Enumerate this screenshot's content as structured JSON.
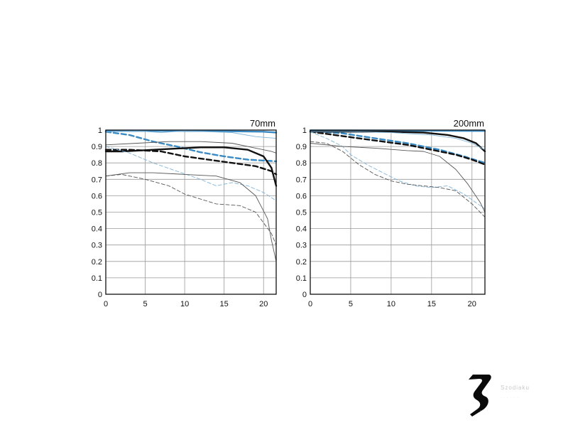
{
  "chart_data": [
    {
      "type": "line",
      "title": "70mm",
      "xlim": [
        0,
        21.6
      ],
      "ylim": [
        0,
        1
      ],
      "xticks": [
        "0",
        "5",
        "10",
        "15",
        "20"
      ],
      "yticks": [
        "0",
        "0.1",
        "0.2",
        "0.3",
        "0.4",
        "0.5",
        "0.6",
        "0.7",
        "0.8",
        "0.9",
        "1"
      ],
      "grid": true,
      "series": [
        {
          "color": "#3a8ac4",
          "dash": "solid",
          "weight": "thick",
          "points": [
            [
              0,
              0.995
            ],
            [
              5,
              0.995
            ],
            [
              10,
              0.995
            ],
            [
              15,
              0.993
            ],
            [
              20,
              0.99
            ],
            [
              21.6,
              0.985
            ]
          ]
        },
        {
          "color": "#3a8ac4",
          "dash": "dashed",
          "weight": "thick",
          "points": [
            [
              0,
              0.99
            ],
            [
              3,
              0.97
            ],
            [
              6,
              0.93
            ],
            [
              9,
              0.9
            ],
            [
              12,
              0.865
            ],
            [
              15,
              0.84
            ],
            [
              18,
              0.82
            ],
            [
              21.6,
              0.81
            ]
          ]
        },
        {
          "color": "#111111",
          "dash": "solid",
          "weight": "thick",
          "points": [
            [
              0,
              0.87
            ],
            [
              2,
              0.87
            ],
            [
              4,
              0.875
            ],
            [
              8,
              0.885
            ],
            [
              12,
              0.895
            ],
            [
              15,
              0.895
            ],
            [
              18,
              0.88
            ],
            [
              20,
              0.84
            ],
            [
              21,
              0.77
            ],
            [
              21.6,
              0.66
            ]
          ]
        },
        {
          "color": "#111111",
          "dash": "dashed",
          "weight": "thick",
          "points": [
            [
              0,
              0.88
            ],
            [
              3,
              0.88
            ],
            [
              7,
              0.87
            ],
            [
              10,
              0.84
            ],
            [
              13,
              0.82
            ],
            [
              16,
              0.8
            ],
            [
              19,
              0.78
            ],
            [
              21,
              0.75
            ],
            [
              21.6,
              0.73
            ]
          ]
        },
        {
          "color": "#7fb3d8",
          "dash": "solid",
          "weight": "thin",
          "points": [
            [
              0,
              0.99
            ],
            [
              4,
              0.995
            ],
            [
              7,
              0.985
            ],
            [
              10,
              0.995
            ],
            [
              13,
              0.99
            ],
            [
              16,
              0.985
            ],
            [
              19,
              0.96
            ],
            [
              21.6,
              0.95
            ]
          ]
        },
        {
          "color": "#7fb3d8",
          "dash": "dashed",
          "weight": "thin",
          "points": [
            [
              0,
              0.9
            ],
            [
              3,
              0.86
            ],
            [
              6,
              0.8
            ],
            [
              9,
              0.75
            ],
            [
              12,
              0.7
            ],
            [
              14,
              0.66
            ],
            [
              16,
              0.68
            ],
            [
              18,
              0.66
            ],
            [
              20,
              0.62
            ],
            [
              21.6,
              0.57
            ]
          ]
        },
        {
          "color": "#555555",
          "dash": "solid",
          "weight": "thin",
          "points": [
            [
              0,
              0.91
            ],
            [
              4,
              0.92
            ],
            [
              8,
              0.93
            ],
            [
              12,
              0.93
            ],
            [
              16,
              0.92
            ],
            [
              19,
              0.89
            ],
            [
              21,
              0.87
            ],
            [
              21.6,
              0.86
            ]
          ]
        },
        {
          "color": "#555555",
          "dash": "dashed",
          "weight": "thin",
          "points": [
            [
              0,
              0.72
            ],
            [
              2,
              0.73
            ],
            [
              5,
              0.7
            ],
            [
              8,
              0.66
            ],
            [
              10,
              0.61
            ],
            [
              12,
              0.58
            ],
            [
              14,
              0.55
            ],
            [
              17,
              0.54
            ],
            [
              19,
              0.5
            ],
            [
              21,
              0.37
            ],
            [
              21.6,
              0.3
            ]
          ]
        },
        {
          "color": "#555555",
          "dash": "solid",
          "weight": "thin",
          "points": [
            [
              0,
              0.72
            ],
            [
              3,
              0.74
            ],
            [
              6,
              0.74
            ],
            [
              10,
              0.73
            ],
            [
              14,
              0.72
            ],
            [
              17,
              0.68
            ],
            [
              19,
              0.6
            ],
            [
              20.5,
              0.46
            ],
            [
              21,
              0.33
            ],
            [
              21.6,
              0.2
            ]
          ]
        }
      ]
    },
    {
      "type": "line",
      "title": "200mm",
      "xlim": [
        0,
        21.6
      ],
      "ylim": [
        0,
        1
      ],
      "xticks": [
        "0",
        "5",
        "10",
        "15",
        "20"
      ],
      "yticks": [
        "0",
        "0.1",
        "0.2",
        "0.3",
        "0.4",
        "0.5",
        "0.6",
        "0.7",
        "0.8",
        "0.9",
        "1"
      ],
      "grid": true,
      "series": [
        {
          "color": "#3a8ac4",
          "dash": "solid",
          "weight": "thick",
          "points": [
            [
              0,
              0.998
            ],
            [
              10,
              0.997
            ],
            [
              20,
              0.995
            ],
            [
              21.6,
              0.995
            ]
          ]
        },
        {
          "color": "#3a8ac4",
          "dash": "dashed",
          "weight": "thick",
          "points": [
            [
              0,
              0.995
            ],
            [
              4,
              0.98
            ],
            [
              8,
              0.95
            ],
            [
              12,
              0.92
            ],
            [
              16,
              0.88
            ],
            [
              19,
              0.84
            ],
            [
              21.6,
              0.8
            ]
          ]
        },
        {
          "color": "#111111",
          "dash": "solid",
          "weight": "thick",
          "points": [
            [
              0,
              0.99
            ],
            [
              5,
              0.99
            ],
            [
              10,
              0.99
            ],
            [
              14,
              0.985
            ],
            [
              17,
              0.97
            ],
            [
              19,
              0.95
            ],
            [
              20.5,
              0.92
            ],
            [
              21.6,
              0.87
            ]
          ]
        },
        {
          "color": "#111111",
          "dash": "dashed",
          "weight": "thick",
          "points": [
            [
              0,
              0.99
            ],
            [
              3,
              0.97
            ],
            [
              6,
              0.95
            ],
            [
              9,
              0.93
            ],
            [
              12,
              0.91
            ],
            [
              15,
              0.88
            ],
            [
              18,
              0.85
            ],
            [
              20,
              0.82
            ],
            [
              21.6,
              0.79
            ]
          ]
        },
        {
          "color": "#7fb3d8",
          "dash": "solid",
          "weight": "thin",
          "points": [
            [
              0,
              0.99
            ],
            [
              5,
              0.99
            ],
            [
              10,
              0.985
            ],
            [
              15,
              0.97
            ],
            [
              18,
              0.95
            ],
            [
              20,
              0.92
            ],
            [
              21.6,
              0.88
            ]
          ]
        },
        {
          "color": "#7fb3d8",
          "dash": "dashed",
          "weight": "thin",
          "points": [
            [
              0,
              0.99
            ],
            [
              2,
              0.95
            ],
            [
              4,
              0.9
            ],
            [
              5,
              0.85
            ],
            [
              7,
              0.79
            ],
            [
              9,
              0.74
            ],
            [
              11,
              0.69
            ],
            [
              13,
              0.66
            ],
            [
              15,
              0.65
            ],
            [
              17,
              0.66
            ],
            [
              19,
              0.61
            ],
            [
              21.6,
              0.52
            ]
          ]
        },
        {
          "color": "#555555",
          "dash": "solid",
          "weight": "thin",
          "points": [
            [
              0,
              0.92
            ],
            [
              4,
              0.9
            ],
            [
              8,
              0.89
            ],
            [
              12,
              0.875
            ],
            [
              14,
              0.87
            ],
            [
              16,
              0.84
            ],
            [
              18,
              0.76
            ],
            [
              19.5,
              0.67
            ],
            [
              21,
              0.56
            ],
            [
              21.6,
              0.5
            ]
          ]
        },
        {
          "color": "#555555",
          "dash": "dashed",
          "weight": "thin",
          "points": [
            [
              0,
              0.93
            ],
            [
              2,
              0.92
            ],
            [
              4,
              0.87
            ],
            [
              6,
              0.79
            ],
            [
              8,
              0.73
            ],
            [
              10,
              0.69
            ],
            [
              12,
              0.67
            ],
            [
              14,
              0.66
            ],
            [
              16,
              0.65
            ],
            [
              18,
              0.63
            ],
            [
              20,
              0.55
            ],
            [
              21.6,
              0.47
            ]
          ]
        }
      ]
    }
  ]
}
